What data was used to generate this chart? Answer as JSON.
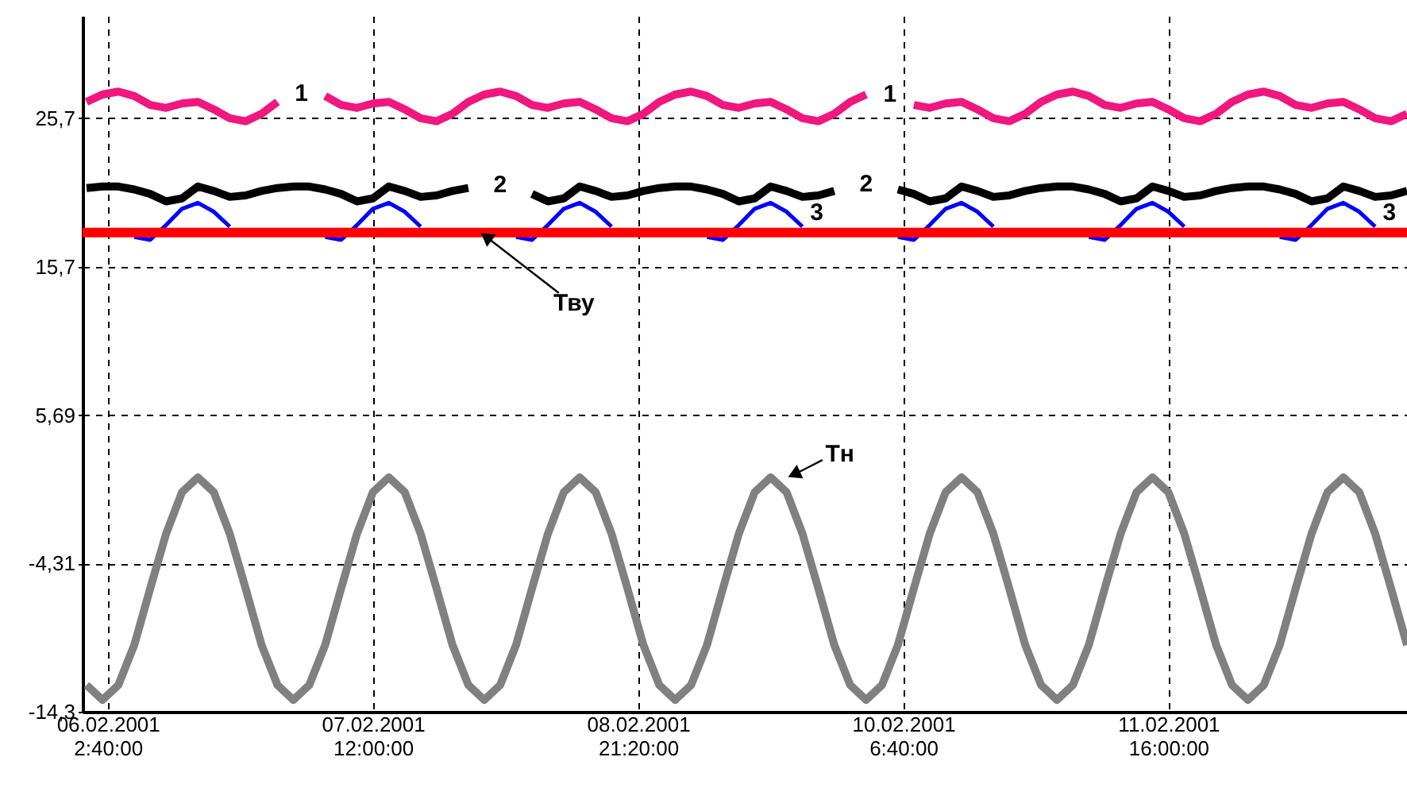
{
  "chart_data": {
    "type": "line",
    "x": [
      "2001-02-06T00:00",
      "2001-02-06T02:00",
      "2001-02-06T04:00",
      "2001-02-06T06:00",
      "2001-02-06T08:00",
      "2001-02-06T10:00",
      "2001-02-06T12:00",
      "2001-02-06T14:00",
      "2001-02-06T16:00",
      "2001-02-06T18:00",
      "2001-02-06T20:00",
      "2001-02-06T22:00",
      "2001-02-07T00:00",
      "2001-02-07T02:00",
      "2001-02-07T04:00",
      "2001-02-07T06:00",
      "2001-02-07T08:00",
      "2001-02-07T10:00",
      "2001-02-07T12:00",
      "2001-02-07T14:00",
      "2001-02-07T16:00",
      "2001-02-07T18:00",
      "2001-02-07T20:00",
      "2001-02-07T22:00",
      "2001-02-08T00:00",
      "2001-02-08T02:00",
      "2001-02-08T04:00",
      "2001-02-08T06:00",
      "2001-02-08T08:00",
      "2001-02-08T10:00",
      "2001-02-08T12:00",
      "2001-02-08T14:00",
      "2001-02-08T16:00",
      "2001-02-08T18:00",
      "2001-02-08T20:00",
      "2001-02-08T22:00",
      "2001-02-09T00:00",
      "2001-02-09T02:00",
      "2001-02-09T04:00",
      "2001-02-09T06:00",
      "2001-02-09T08:00",
      "2001-02-09T10:00",
      "2001-02-09T12:00",
      "2001-02-09T14:00",
      "2001-02-09T16:00",
      "2001-02-09T18:00",
      "2001-02-09T20:00",
      "2001-02-09T22:00",
      "2001-02-10T00:00",
      "2001-02-10T02:00",
      "2001-02-10T04:00",
      "2001-02-10T06:00",
      "2001-02-10T08:00",
      "2001-02-10T10:00",
      "2001-02-10T12:00",
      "2001-02-10T14:00",
      "2001-02-10T16:00",
      "2001-02-10T18:00",
      "2001-02-10T20:00",
      "2001-02-10T22:00",
      "2001-02-11T00:00",
      "2001-02-11T02:00",
      "2001-02-11T04:00",
      "2001-02-11T06:00",
      "2001-02-11T08:00",
      "2001-02-11T10:00",
      "2001-02-11T12:00",
      "2001-02-11T14:00",
      "2001-02-11T16:00",
      "2001-02-11T18:00",
      "2001-02-11T20:00",
      "2001-02-11T22:00",
      "2001-02-12T00:00",
      "2001-02-12T02:00",
      "2001-02-12T04:00",
      "2001-02-12T06:00",
      "2001-02-12T08:00",
      "2001-02-12T10:00",
      "2001-02-12T12:00",
      "2001-02-12T14:00",
      "2001-02-12T16:00",
      "2001-02-12T18:00",
      "2001-02-12T20:00",
      "2001-02-12T22:00"
    ],
    "series": [
      {
        "name": "1",
        "color": "#f0177f",
        "values": [
          26.8,
          27.3,
          27.5,
          27.2,
          26.6,
          26.4,
          26.7,
          26.8,
          26.3,
          25.7,
          25.5,
          26.0,
          26.8,
          null,
          null,
          27.2,
          26.6,
          26.4,
          26.7,
          26.8,
          26.3,
          25.7,
          25.5,
          26.0,
          26.8,
          27.3,
          27.5,
          27.2,
          26.6,
          26.4,
          26.7,
          26.8,
          26.3,
          25.7,
          25.5,
          26.0,
          26.8,
          27.3,
          27.5,
          27.2,
          26.6,
          26.4,
          26.7,
          26.8,
          26.3,
          25.7,
          25.5,
          26.0,
          26.8,
          27.3,
          null,
          null,
          26.6,
          26.4,
          26.7,
          26.8,
          26.3,
          25.7,
          25.5,
          26.0,
          26.8,
          27.3,
          27.5,
          27.2,
          26.6,
          26.4,
          26.7,
          26.8,
          26.3,
          25.7,
          25.5,
          26.0,
          26.8,
          27.3,
          27.5,
          27.2,
          26.6,
          26.4,
          26.7,
          26.8,
          26.3,
          25.7,
          25.5,
          26.0
        ]
      },
      {
        "name": "2",
        "color": "#000000",
        "values": [
          21.0,
          21.1,
          21.1,
          20.9,
          20.6,
          20.1,
          20.3,
          21.1,
          20.8,
          20.4,
          20.5,
          20.8,
          21.0,
          21.1,
          21.1,
          20.9,
          20.6,
          20.1,
          20.3,
          21.1,
          20.8,
          20.4,
          20.5,
          20.8,
          21.0,
          null,
          null,
          null,
          20.6,
          20.1,
          20.3,
          21.1,
          20.8,
          20.4,
          20.5,
          20.8,
          21.0,
          21.1,
          21.1,
          20.9,
          20.6,
          20.1,
          20.3,
          21.1,
          20.8,
          20.4,
          20.5,
          20.8,
          null,
          null,
          null,
          20.9,
          20.6,
          20.1,
          20.3,
          21.1,
          20.8,
          20.4,
          20.5,
          20.8,
          21.0,
          21.1,
          21.1,
          20.9,
          20.6,
          20.1,
          20.3,
          21.1,
          20.8,
          20.4,
          20.5,
          20.8,
          21.0,
          21.1,
          21.1,
          20.9,
          20.6,
          20.1,
          20.3,
          21.1,
          20.8,
          20.4,
          20.5,
          20.8
        ]
      },
      {
        "name": "3",
        "color": "#0000ff",
        "values": [
          null,
          null,
          null,
          17.7,
          17.5,
          18.5,
          19.6,
          20.0,
          19.4,
          18.4,
          null,
          null,
          null,
          null,
          null,
          17.7,
          17.5,
          18.5,
          19.6,
          20.0,
          19.4,
          18.4,
          null,
          null,
          null,
          null,
          null,
          17.7,
          17.5,
          18.5,
          19.6,
          20.0,
          19.4,
          18.4,
          null,
          null,
          null,
          null,
          null,
          17.7,
          17.5,
          18.5,
          19.6,
          20.0,
          19.4,
          18.4,
          null,
          null,
          null,
          null,
          null,
          17.7,
          17.5,
          18.5,
          19.6,
          20.0,
          19.4,
          18.4,
          null,
          null,
          null,
          null,
          null,
          17.7,
          17.5,
          18.5,
          19.6,
          20.0,
          19.4,
          18.4,
          null,
          null,
          null,
          null,
          null,
          17.7,
          17.5,
          18.5,
          19.6,
          20.0,
          19.4,
          18.4,
          null,
          null
        ]
      },
      {
        "color": "#ff0000",
        "x": [
          "2001-02-05T23:30",
          "2001-02-12T22:00"
        ],
        "values": [
          18.0,
          18.0
        ]
      },
      {
        "color": "#808080",
        "values": [
          -12.5,
          -13.5,
          -12.5,
          -9.8,
          -6,
          -2.3,
          0.5,
          1.5,
          0.5,
          -2.3,
          -6,
          -9.8,
          -12.5,
          -13.5,
          -12.5,
          -9.8,
          -6,
          -2.3,
          0.5,
          1.5,
          0.5,
          -2.3,
          -6,
          -9.8,
          -12.5,
          -13.5,
          -12.5,
          -9.8,
          -6,
          -2.3,
          0.5,
          1.5,
          0.5,
          -2.3,
          -6,
          -9.8,
          -12.5,
          -13.5,
          -12.5,
          -9.8,
          -6,
          -2.3,
          0.5,
          1.5,
          0.5,
          -2.3,
          -6,
          -9.8,
          -12.5,
          -13.5,
          -12.5,
          -9.8,
          -6,
          -2.3,
          0.5,
          1.5,
          0.5,
          -2.3,
          -6,
          -9.8,
          -12.5,
          -13.5,
          -12.5,
          -9.8,
          -6,
          -2.3,
          0.5,
          1.5,
          0.5,
          -2.3,
          -6,
          -9.8,
          -12.5,
          -13.5,
          -12.5,
          -9.8,
          -6,
          -2.3,
          0.5,
          1.5,
          0.5,
          -2.3,
          -6,
          -9.8
        ]
      }
    ],
    "xlim": [
      "2001-02-05T23:30",
      "2001-02-12T22:00"
    ],
    "xticks": [
      {
        "value": "2001-02-06T02:40",
        "label": "06.02.2001 2:40:00"
      },
      {
        "value": "2001-02-07T12:00",
        "label": "07.02.2001 12:00:00"
      },
      {
        "value": "2001-02-08T21:20",
        "label": "08.02.2001 21:20:00"
      },
      {
        "value": "2001-02-10T06:40",
        "label": "10.02.2001 6:40:00"
      },
      {
        "value": "2001-02-11T16:00",
        "label": "11.02.2001 16:00:00"
      }
    ],
    "ylim": [
      -14.3,
      32.6
    ],
    "yticks": [
      {
        "value": -14.3,
        "label": "-14,3"
      },
      {
        "value": -4.31,
        "label": "-4,31"
      },
      {
        "value": 5.69,
        "label": "5,69"
      },
      {
        "value": 15.7,
        "label": "15,7"
      },
      {
        "value": 25.7,
        "label": "25,7"
      }
    ],
    "grid": true,
    "annotations": [
      {
        "text": "Тву",
        "x": "2001-02-08T01:30",
        "y": 18.0
      },
      {
        "text": "Тн",
        "x": "2001-02-09T16:06",
        "y": 1.5
      }
    ]
  }
}
